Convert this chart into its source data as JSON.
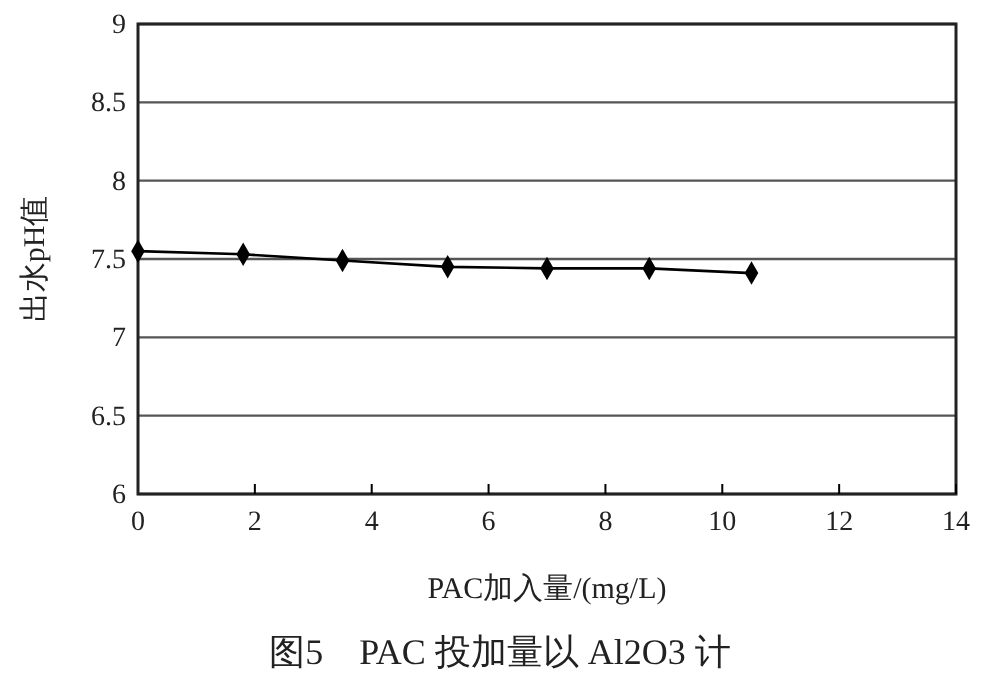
{
  "chart_data": {
    "type": "line",
    "title": "图5　PAC 投加量以 Al2O3 计",
    "xlabel": "PAC加入量/(mg/L)",
    "ylabel": "出水pH值",
    "x": [
      0,
      1.8,
      3.5,
      5.3,
      7,
      8.75,
      10.5
    ],
    "series": [
      {
        "color": "#000000",
        "values": [
          7.55,
          7.53,
          7.49,
          7.45,
          7.44,
          7.44,
          7.41
        ]
      }
    ],
    "xlim": [
      0,
      14
    ],
    "xticks": [
      0,
      2,
      4,
      6,
      8,
      10,
      12,
      14
    ],
    "ylim": [
      6,
      9
    ],
    "yticks": [
      6,
      6.5,
      7,
      7.5,
      8,
      8.5,
      9
    ],
    "grid": "y",
    "marker": "diamond",
    "line_style": "solid"
  }
}
